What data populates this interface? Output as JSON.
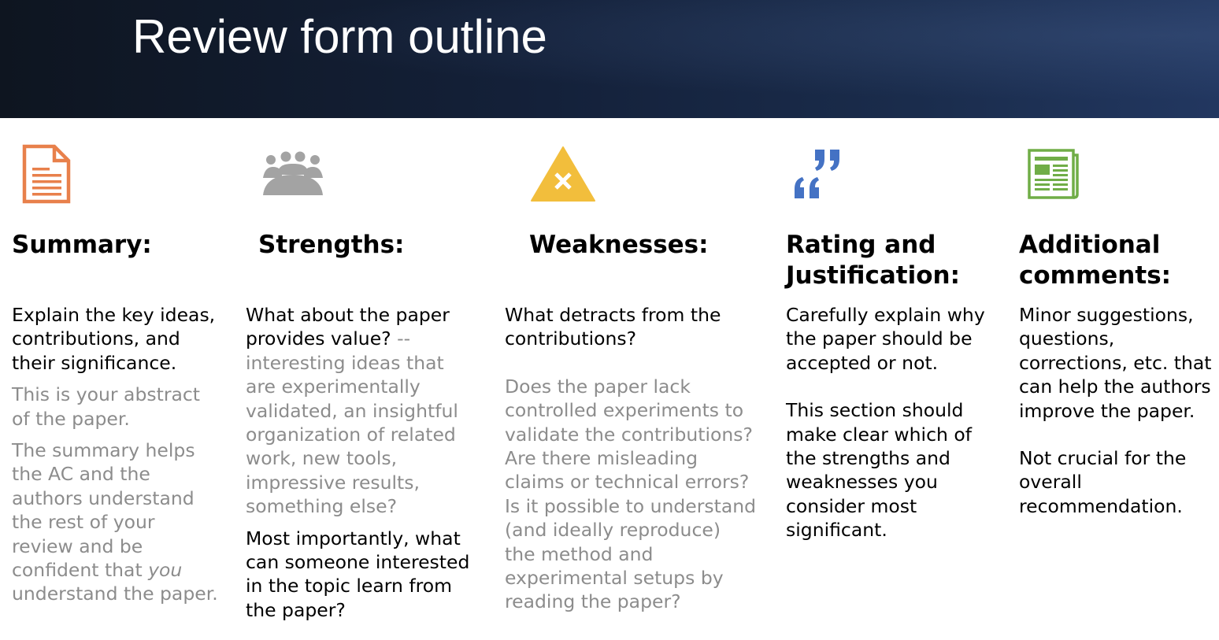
{
  "slide": {
    "title": "Review form outline"
  },
  "colors": {
    "summary_icon": "#e8804b",
    "strengths_icon": "#a3a3a3",
    "weaknesses_icon": "#f2be3c",
    "rating_icon": "#4472c4",
    "comments_icon": "#70ad47",
    "secondary_text": "#8c8c8c"
  },
  "columns": {
    "summary": {
      "icon": "document-icon",
      "heading": "Summary:",
      "p1": "Explain the key ideas, contributions, and their significance.",
      "p2": "This is your abstract of the paper.",
      "p3_a": "The summary helps the AC and the authors understand the rest of your review and be confident that ",
      "p3_em": "you",
      "p3_b": " understand the paper."
    },
    "strengths": {
      "icon": "audience-icon",
      "heading": "Strengths:",
      "p1_a": "What about the paper provides value?",
      "p1_b": " -- interesting ideas that are experimentally validated, an insightful organization of related work, new tools, impressive results, something else?",
      "p2": "Most importantly, what can someone interested in the topic learn from the paper?"
    },
    "weaknesses": {
      "icon": "warning-icon",
      "heading": "Weaknesses:",
      "p1": "What detracts from the contributions?",
      "p2": "Does the paper lack controlled experiments to validate the contributions? Are there misleading claims or technical errors? Is it possible to understand (and ideally reproduce) the method and experimental setups by reading the paper?"
    },
    "rating": {
      "icon": "quote-icon",
      "heading": "Rating and Justification:",
      "p1": "Carefully explain why the paper should be accepted or not.",
      "p2": "This section should make clear which of the strengths and weaknesses you consider most significant."
    },
    "comments": {
      "icon": "newspaper-icon",
      "heading": "Additional comments:",
      "p1": "Minor suggestions, questions, corrections, etc. that can help the authors improve the paper.",
      "p2": "Not crucial for the overall recommendation."
    }
  }
}
